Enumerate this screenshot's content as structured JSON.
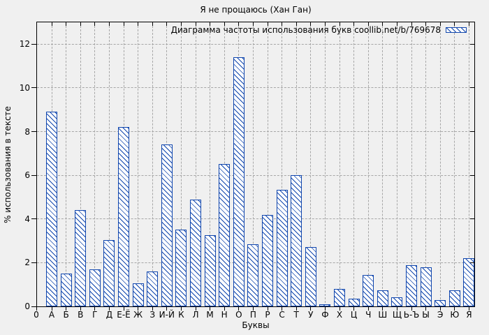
{
  "figure": {
    "title": "Я не прощаюсь (Хан Ган)"
  },
  "legend": {
    "label": "Диаграмма частоты использования букв coollib.net/b/769678"
  },
  "axes": {
    "y_title": "% использования в тексте",
    "x_title": "Буквы",
    "x_origin_label": "0"
  },
  "colors": {
    "background": "#f0f0f0",
    "bar_blue": "#0f45ad",
    "bar_fill": "#ffffff",
    "grid": "#a6a6a6",
    "axis": "#000000",
    "text": "#000000"
  },
  "chart_data": {
    "type": "bar",
    "title": "Я не прощаюсь (Хан Ган)",
    "legend": "Диаграмма частоты использования букв coollib.net/b/769678",
    "xlabel": "Буквы",
    "ylabel": "% использования в тексте",
    "ylim": [
      0,
      13
    ],
    "y_ticks": [
      0,
      2,
      4,
      6,
      8,
      10,
      12
    ],
    "grid": true,
    "legend_position": "top-right-inside",
    "bar_style": "white fill with blue diagonal hatch and blue border",
    "categories": [
      "А",
      "Б",
      "В",
      "Г",
      "Д",
      "Е-Ё",
      "Ж",
      "З",
      "И-Й",
      "К",
      "Л",
      "М",
      "Н",
      "О",
      "П",
      "Р",
      "С",
      "Т",
      "У",
      "Ф",
      "Х",
      "Ц",
      "Ч",
      "Ш",
      "Щ",
      "Ь-Ъ",
      "Ы",
      "Э",
      "Ю",
      "Я"
    ],
    "values": [
      8.9,
      1.5,
      4.4,
      1.7,
      3.05,
      8.2,
      1.05,
      1.6,
      7.4,
      3.5,
      4.9,
      3.25,
      6.5,
      11.4,
      2.85,
      4.2,
      5.35,
      6.0,
      2.7,
      0.1,
      0.8,
      0.35,
      1.45,
      0.75,
      0.4,
      1.9,
      1.8,
      0.3,
      0.75,
      2.2
    ]
  }
}
